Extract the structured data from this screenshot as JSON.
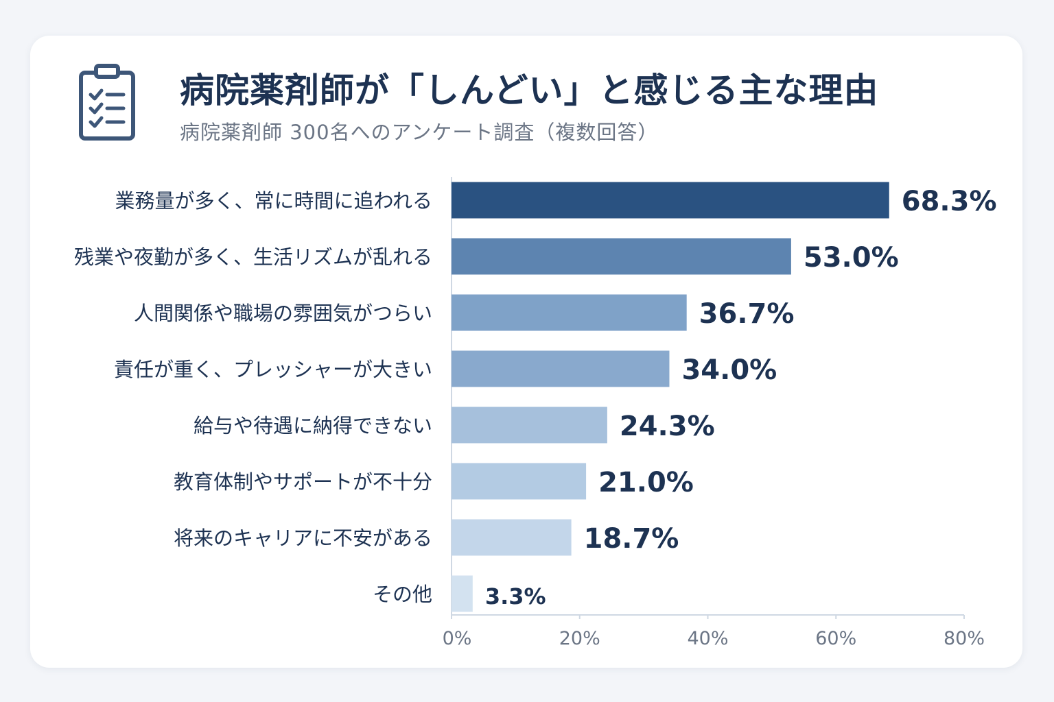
{
  "header": {
    "title": "病院薬剤師が「しんどい」と感じる主な理由",
    "subtitle": "病院薬剤師 300名へのアンケート調査（複数回答）",
    "icon": "clipboard-checklist-icon"
  },
  "colors": {
    "text_dark": "#1d3252",
    "text_muted": "#6b7585",
    "bars": [
      "#2a5281",
      "#5d84b0",
      "#7fa2c8",
      "#89a9cd",
      "#a6c0dc",
      "#b3cbe3",
      "#c3d6ea",
      "#d3e2f0"
    ]
  },
  "chart_data": {
    "type": "bar",
    "orientation": "horizontal",
    "categories": [
      "業務量が多く、常に時間に追われる",
      "残業や夜勤が多く、生活リズムが乱れる",
      "人間関係や職場の雰囲気がつらい",
      "責任が重く、プレッシャーが大きい",
      "給与や待遇に納得できない",
      "教育体制やサポートが不十分",
      "将来のキャリアに不安がある",
      "その他"
    ],
    "values": [
      68.3,
      53.0,
      36.7,
      34.0,
      24.3,
      21.0,
      18.7,
      3.3
    ],
    "value_labels": [
      "68.3%",
      "53.0%",
      "36.7%",
      "34.0%",
      "24.3%",
      "21.0%",
      "18.7%",
      "3.3%"
    ],
    "xlim": [
      0,
      80
    ],
    "xticks": [
      0,
      20,
      40,
      60,
      80
    ],
    "xtick_labels": [
      "0%",
      "20%",
      "40%",
      "60%",
      "80%"
    ],
    "grid": false,
    "legend": "none"
  }
}
